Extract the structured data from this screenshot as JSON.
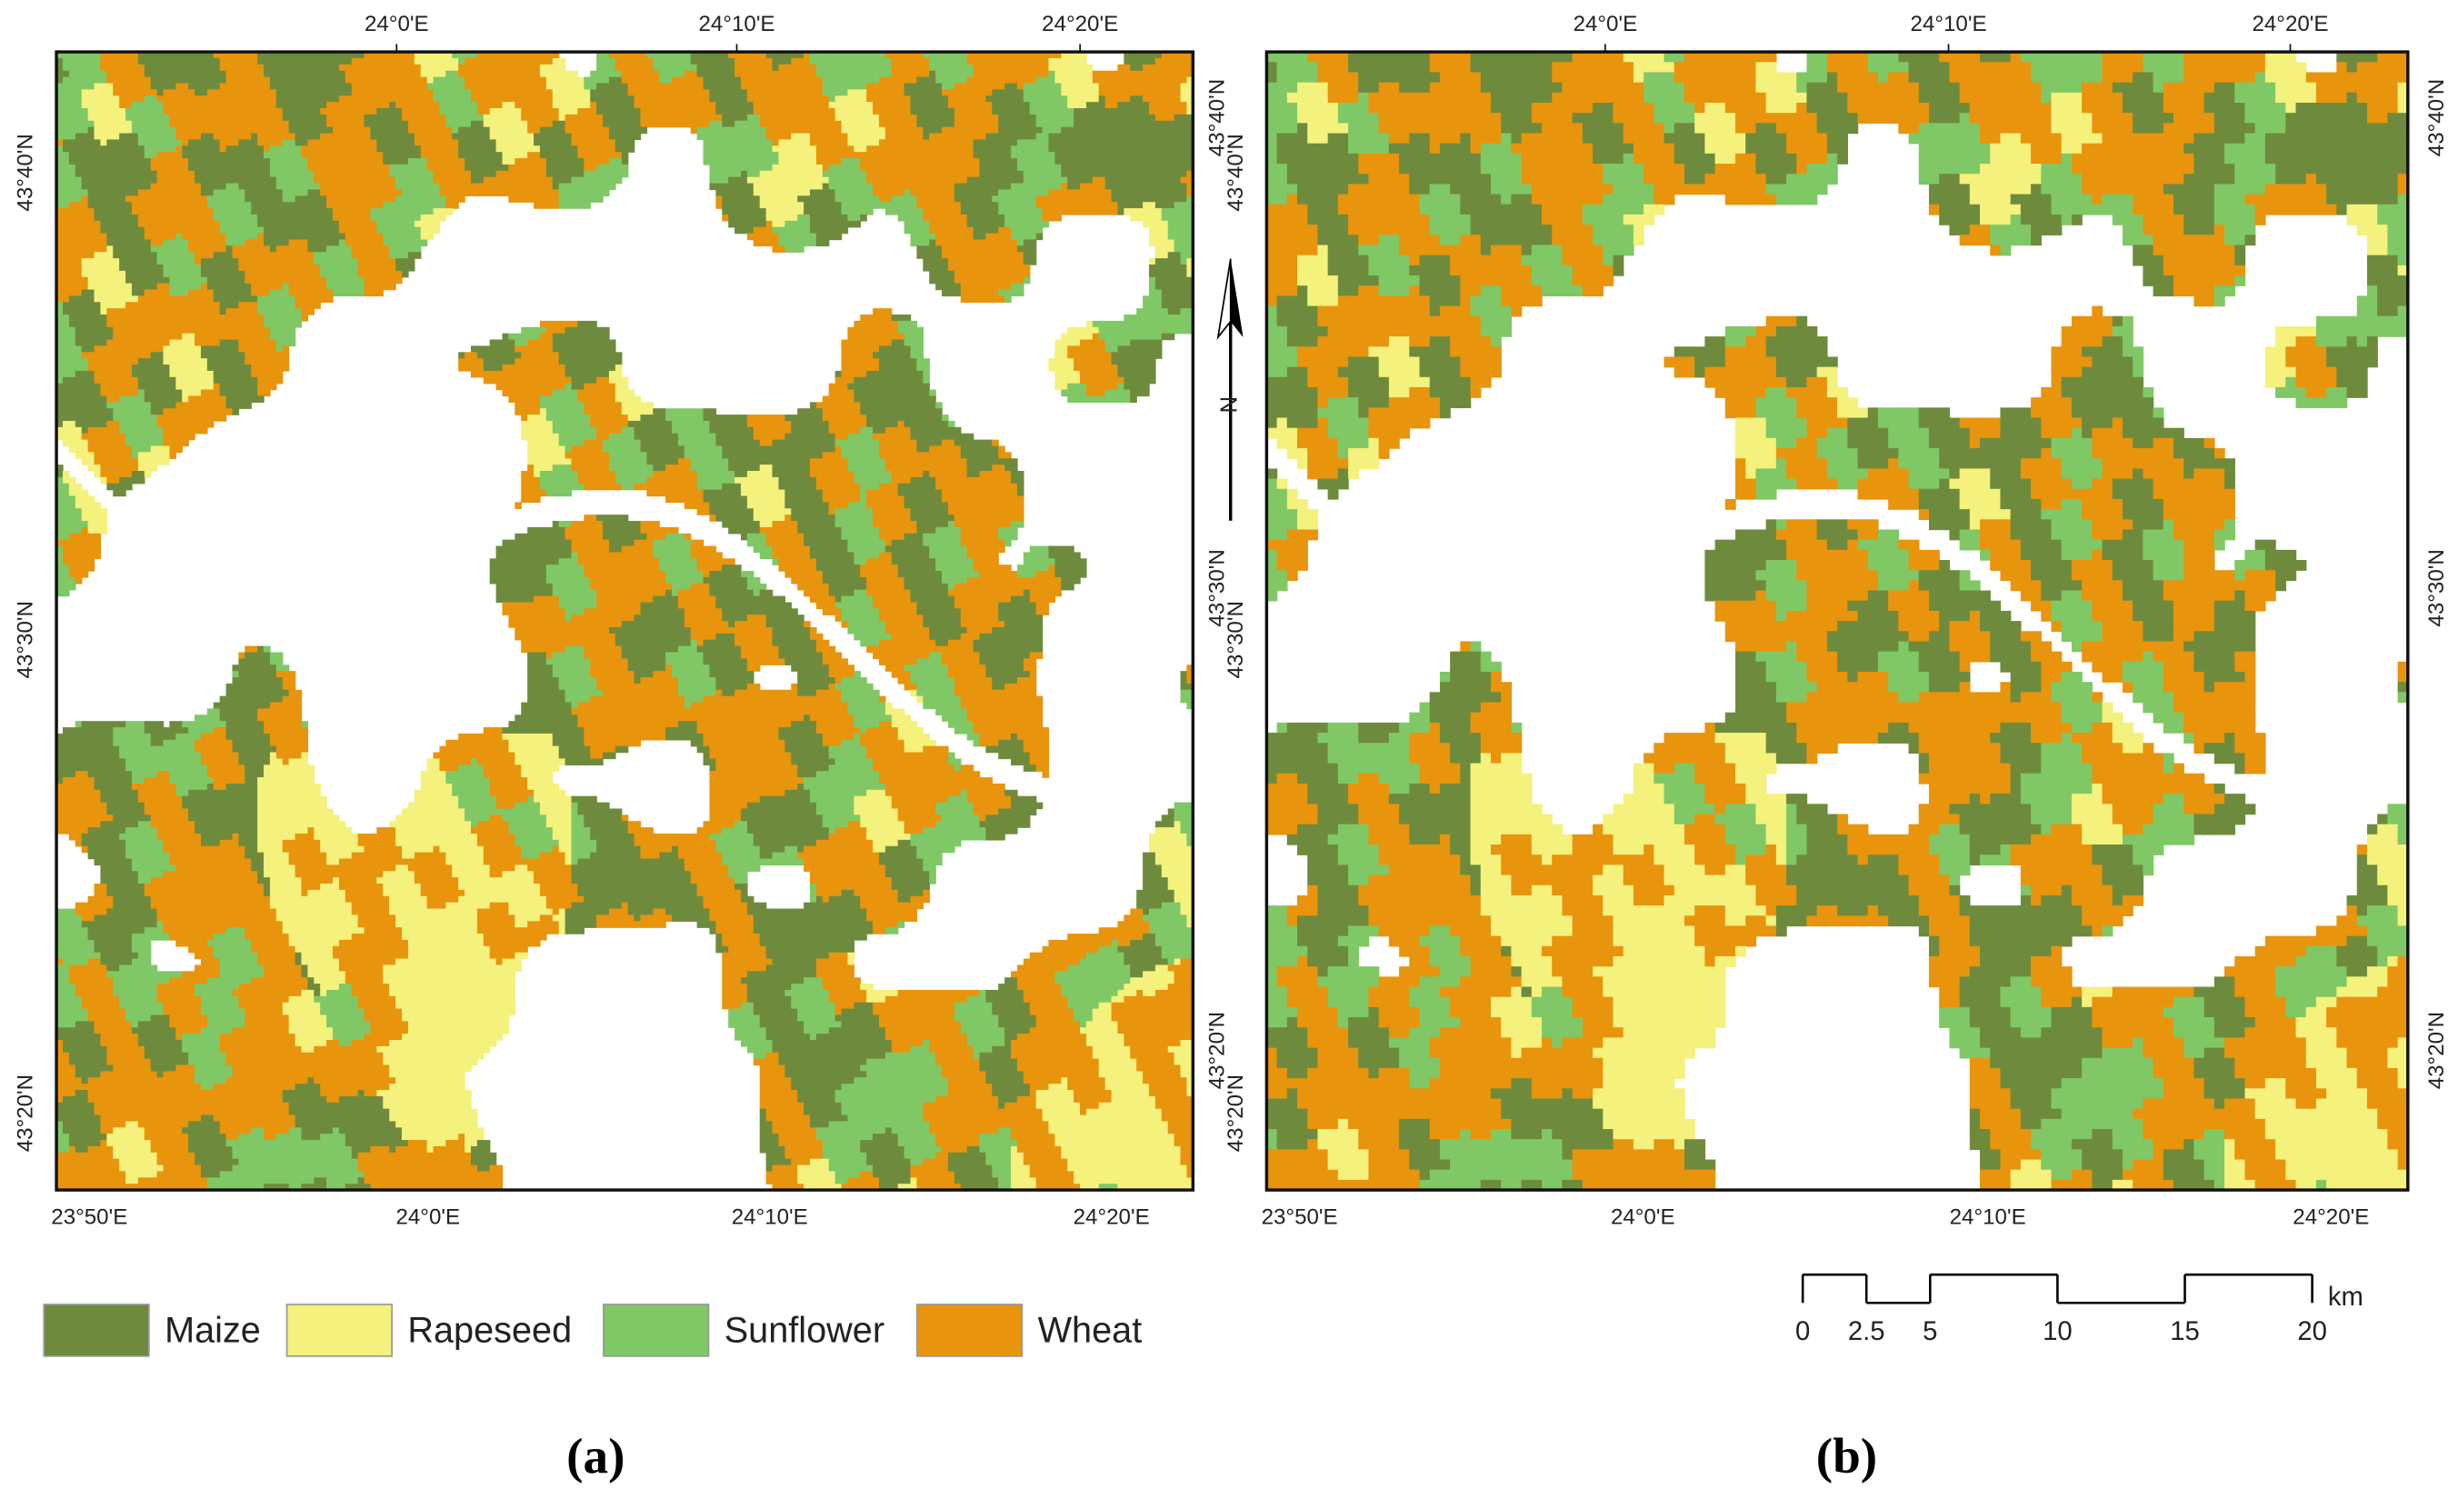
{
  "panels": [
    {
      "label": "(a)",
      "top_ticks": [
        "24°0'E",
        "24°10'E",
        "24°20'E"
      ],
      "bottom_ticks": [
        "23°50'E",
        "24°0'E",
        "24°10'E",
        "24°20'E"
      ],
      "left_ticks": [
        "43°40'N",
        "43°30'N",
        "43°20'N"
      ],
      "right_ticks": [
        "43°40'N",
        "43°30'N",
        "43°20'N"
      ]
    },
    {
      "label": "(b)",
      "top_ticks": [
        "24°0'E",
        "24°10'E",
        "24°20'E"
      ],
      "bottom_ticks": [
        "23°50'E",
        "24°0'E",
        "24°10'E",
        "24°20'E"
      ],
      "left_ticks": [
        "43°40'N",
        "43°30'N",
        "43°20'N"
      ],
      "right_ticks": [
        "43°40'N",
        "43°30'N",
        "43°20'N"
      ]
    }
  ],
  "legend": [
    {
      "name": "Maize",
      "color": "#6e8b3d"
    },
    {
      "name": "Rapeseed",
      "color": "#f4f17c"
    },
    {
      "name": "Sunflower",
      "color": "#80c865"
    },
    {
      "name": "Wheat",
      "color": "#e8940c"
    }
  ],
  "north_arrow": "N",
  "scale_bar": {
    "ticks": [
      0,
      2.5,
      5,
      10,
      15,
      20
    ],
    "unit": "km"
  }
}
